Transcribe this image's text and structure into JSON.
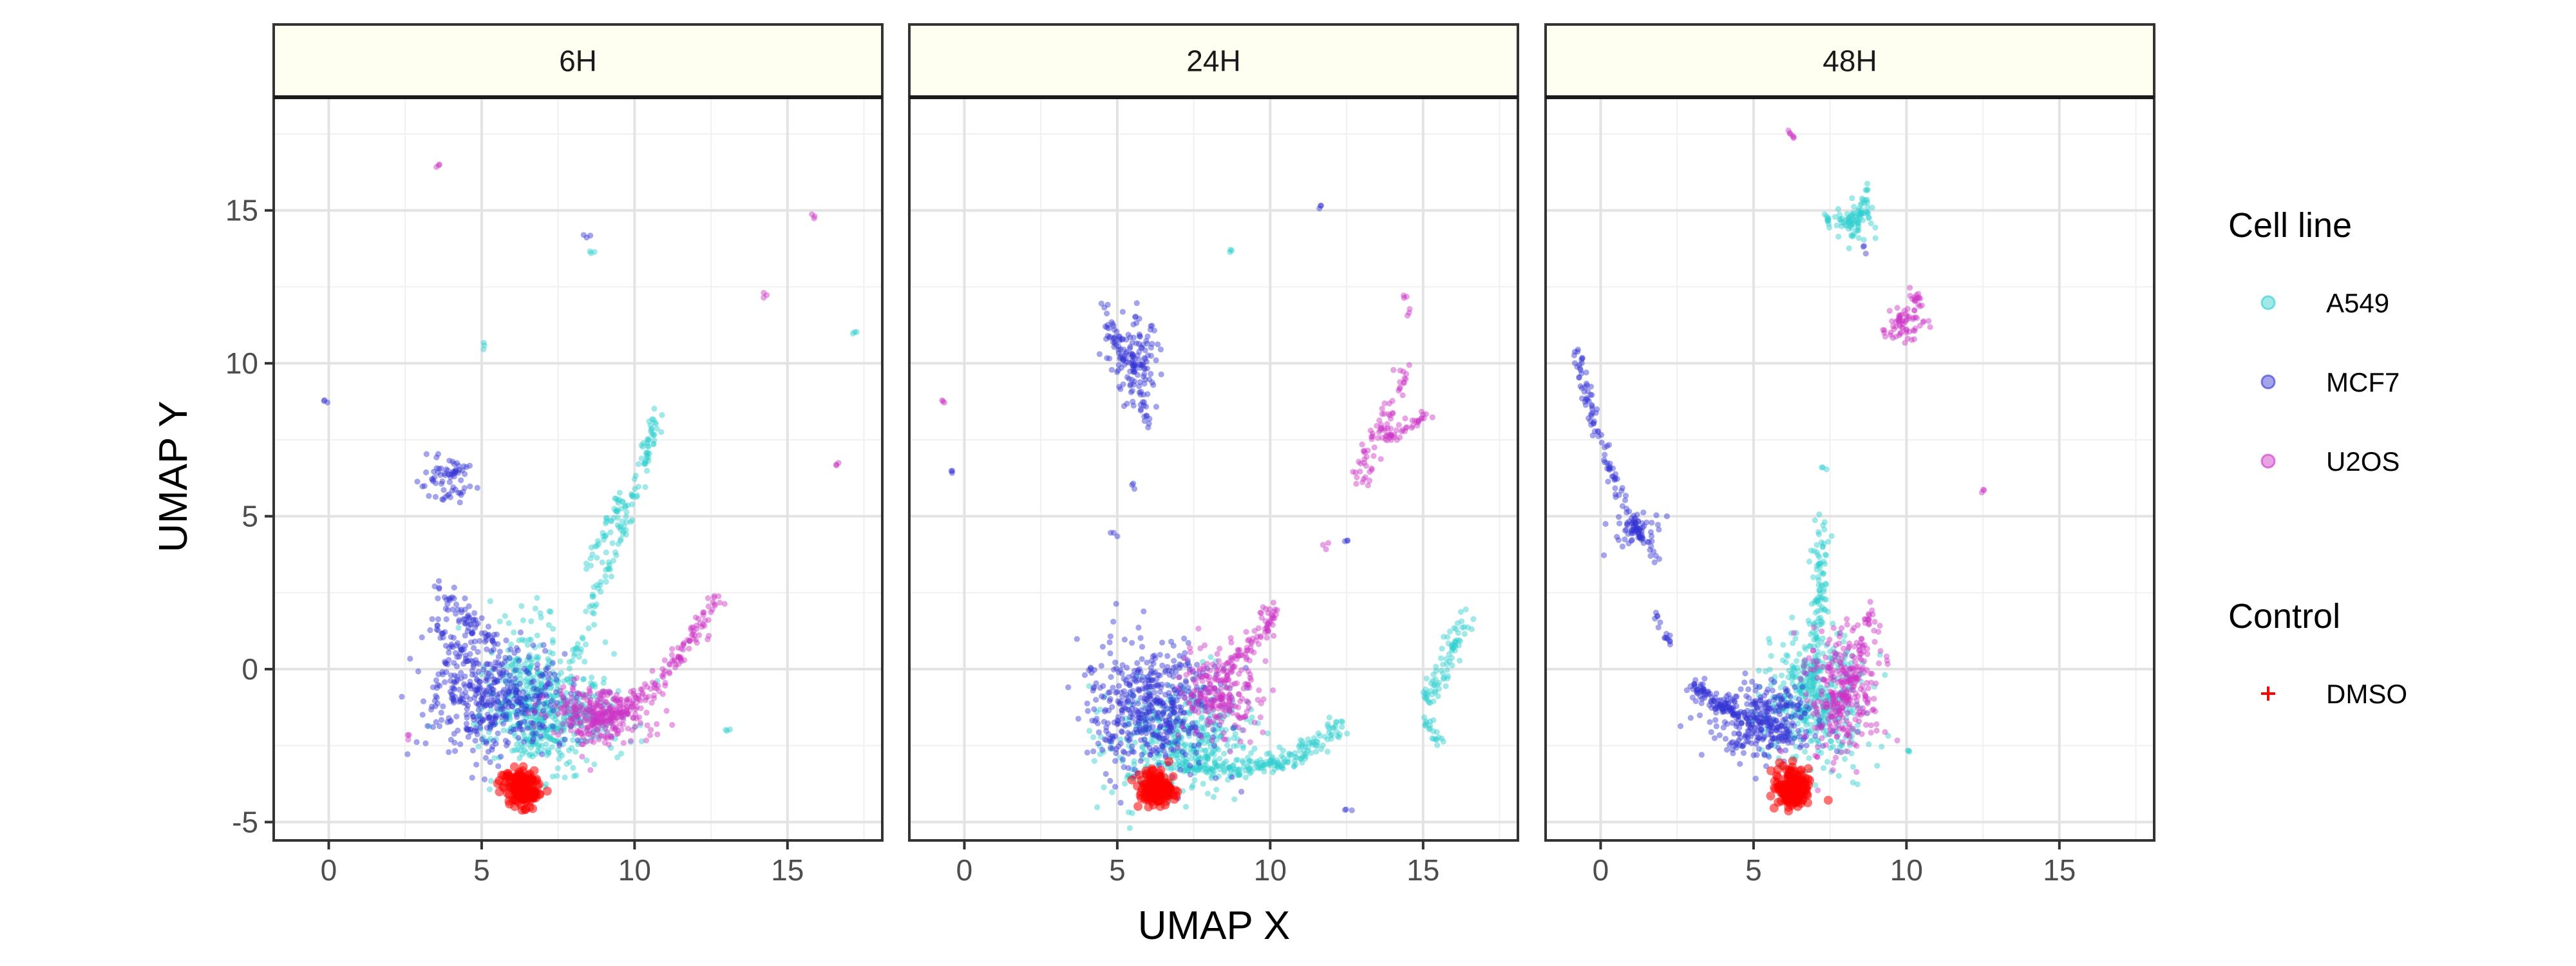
{
  "chart_data": {
    "type": "scatter",
    "xlabel": "UMAP X",
    "ylabel": "UMAP Y",
    "xlim": [
      -1.8,
      18.1
    ],
    "ylim": [
      -5.6,
      18.7
    ],
    "xticks": [
      0,
      5,
      10,
      15
    ],
    "yticks": [
      -5,
      0,
      5,
      10,
      15
    ],
    "x_tick_labels": [
      "0",
      "5",
      "10",
      "15"
    ],
    "y_tick_labels": [
      "-5",
      "0",
      "5",
      "10",
      "15"
    ],
    "grid": true,
    "legend_position": "right",
    "facet_strip_color": "#fefff0",
    "facets": [
      {
        "label": "6H",
        "series": [
          {
            "name": "A549",
            "clusters": [
              {
                "center": [
                  7.2,
                  -1.5
                ],
                "spread": [
                  1.0,
                  0.9
                ],
                "n": 500
              },
              {
                "center": [
                  6.5,
                  0.2
                ],
                "spread": [
                  0.5,
                  1.0
                ],
                "n": 90
              },
              {
                "line": [
                  [
                    8.0,
                    0.2
                  ],
                  [
                    9.2,
                    3.5
                  ],
                  [
                    10.2,
                    6.5
                  ],
                  [
                    10.8,
                    8.4
                  ]
                ],
                "n": 120,
                "jitter": 0.12
              },
              {
                "line": [
                  [
                    8.5,
                    3.2
                  ],
                  [
                    9.6,
                    5.8
                  ]
                ],
                "n": 40,
                "jitter": 0.12
              },
              {
                "points": [
                  [
                    5.1,
                    10.6
                  ],
                  [
                    8.7,
                    13.7
                  ],
                  [
                    17.2,
                    11.0
                  ],
                  [
                    13.0,
                    -2.0
                  ]
                ]
              }
            ]
          },
          {
            "name": "MCF7",
            "clusters": [
              {
                "center": [
                  5.5,
                  -1.0
                ],
                "spread": [
                  1.1,
                  0.9
                ],
                "n": 420
              },
              {
                "line": [
                  [
                    3.7,
                    2.6
                  ],
                  [
                    4.6,
                    1.5
                  ],
                  [
                    5.6,
                    0.6
                  ]
                ],
                "n": 80,
                "jitter": 0.2
              },
              {
                "line": [
                  [
                    3.3,
                    1.5
                  ],
                  [
                    4.7,
                    0.2
                  ]
                ],
                "n": 40,
                "jitter": 0.12
              },
              {
                "center": [
                  3.9,
                  6.3
                ],
                "spread": [
                  0.4,
                  0.35
                ],
                "n": 70
              },
              {
                "points": [
                  [
                    3.5,
                    -0.9
                  ],
                  [
                    -0.1,
                    8.8
                  ],
                  [
                    8.5,
                    14.2
                  ]
                ]
              }
            ]
          },
          {
            "name": "U2OS",
            "clusters": [
              {
                "center": [
                  8.8,
                  -1.5
                ],
                "spread": [
                  0.9,
                  0.5
                ],
                "n": 260
              },
              {
                "line": [
                  [
                    8.6,
                    -1.8
                  ],
                  [
                    10.0,
                    -1.2
                  ],
                  [
                    11.5,
                    0.5
                  ],
                  [
                    12.8,
                    2.6
                  ]
                ],
                "n": 160,
                "jitter": 0.16
              },
              {
                "points": [
                  [
                    3.6,
                    16.5
                  ],
                  [
                    15.8,
                    14.8
                  ],
                  [
                    16.6,
                    6.7
                  ],
                  [
                    14.3,
                    12.2
                  ],
                  [
                    2.6,
                    -2.2
                  ]
                ]
              }
            ]
          },
          {
            "name": "DMSO",
            "clusters": [
              {
                "center": [
                  6.3,
                  -3.9
                ],
                "spread": [
                  0.3,
                  0.3
                ],
                "n": 160
              }
            ]
          }
        ]
      },
      {
        "label": "24H",
        "series": [
          {
            "name": "A549",
            "clusters": [
              {
                "center": [
                  7.3,
                  -2.4
                ],
                "spread": [
                  1.2,
                  0.9
                ],
                "n": 400
              },
              {
                "line": [
                  [
                    7.0,
                    -3.2
                  ],
                  [
                    9.2,
                    -3.3
                  ],
                  [
                    11.0,
                    -2.8
                  ],
                  [
                    12.3,
                    -1.9
                  ]
                ],
                "n": 180,
                "jitter": 0.16
              },
              {
                "line": [
                  [
                    15.0,
                    -1.2
                  ],
                  [
                    15.8,
                    0.3
                  ],
                  [
                    16.5,
                    1.8
                  ]
                ],
                "n": 80,
                "jitter": 0.16
              },
              {
                "line": [
                  [
                    15.0,
                    -1.5
                  ],
                  [
                    15.6,
                    -2.5
                  ]
                ],
                "n": 20,
                "jitter": 0.1
              },
              {
                "points": [
                  [
                    8.7,
                    13.7
                  ]
                ]
              }
            ]
          },
          {
            "name": "MCF7",
            "clusters": [
              {
                "center": [
                  6.1,
                  -1.2
                ],
                "spread": [
                  1.1,
                  1.0
                ],
                "n": 500
              },
              {
                "center": [
                  5.5,
                  10.2
                ],
                "spread": [
                  0.5,
                  0.7
                ],
                "n": 130
              },
              {
                "line": [
                  [
                    4.5,
                    12.2
                  ],
                  [
                    5.5,
                    9.5
                  ],
                  [
                    6.0,
                    8.0
                  ]
                ],
                "n": 50,
                "jitter": 0.12
              },
              {
                "points": [
                  [
                    5.5,
                    6.0
                  ],
                  [
                    4.9,
                    4.4
                  ],
                  [
                    -0.4,
                    6.5
                  ],
                  [
                    11.6,
                    15.1
                  ],
                  [
                    12.5,
                    4.2
                  ],
                  [
                    12.5,
                    -4.6
                  ]
                ]
              }
            ]
          },
          {
            "name": "U2OS",
            "clusters": [
              {
                "center": [
                  8.4,
                  -0.8
                ],
                "spread": [
                  0.7,
                  0.7
                ],
                "n": 220
              },
              {
                "line": [
                  [
                    8.5,
                    0.0
                  ],
                  [
                    9.5,
                    0.9
                  ],
                  [
                    10.2,
                    2.0
                  ]
                ],
                "n": 70,
                "jitter": 0.14
              },
              {
                "line": [
                  [
                    12.9,
                    6.0
                  ],
                  [
                    13.5,
                    7.8
                  ],
                  [
                    14.4,
                    9.7
                  ]
                ],
                "n": 70,
                "jitter": 0.16
              },
              {
                "line": [
                  [
                    13.8,
                    7.5
                  ],
                  [
                    15.2,
                    8.4
                  ]
                ],
                "n": 40,
                "jitter": 0.1
              },
              {
                "points": [
                  [
                    14.4,
                    12.2
                  ],
                  [
                    14.5,
                    11.7
                  ],
                  [
                    -0.7,
                    8.8
                  ],
                  [
                    11.8,
                    4.0
                  ]
                ]
              }
            ]
          },
          {
            "name": "DMSO",
            "clusters": [
              {
                "center": [
                  6.3,
                  -3.9
                ],
                "spread": [
                  0.3,
                  0.3
                ],
                "n": 160
              }
            ]
          }
        ]
      },
      {
        "label": "48H",
        "series": [
          {
            "name": "A549",
            "clusters": [
              {
                "center": [
                  7.0,
                  -1.0
                ],
                "spread": [
                  0.8,
                  1.1
                ],
                "n": 400
              },
              {
                "line": [
                  [
                    6.9,
                    -1.5
                  ],
                  [
                    7.1,
                    1.0
                  ],
                  [
                    7.2,
                    3.0
                  ],
                  [
                    7.3,
                    4.8
                  ]
                ],
                "n": 120,
                "jitter": 0.16
              },
              {
                "center": [
                  8.3,
                  14.6
                ],
                "spread": [
                  0.35,
                  0.35
                ],
                "n": 60
              },
              {
                "line": [
                  [
                    7.3,
                    14.8
                  ],
                  [
                    8.5,
                    14.5
                  ],
                  [
                    8.7,
                    15.8
                  ]
                ],
                "n": 40,
                "jitter": 0.12
              },
              {
                "points": [
                  [
                    7.3,
                    6.6
                  ],
                  [
                    10.1,
                    -2.6
                  ]
                ]
              }
            ]
          },
          {
            "name": "MCF7",
            "clusters": [
              {
                "center": [
                  5.3,
                  -1.6
                ],
                "spread": [
                  0.9,
                  0.6
                ],
                "n": 280
              },
              {
                "line": [
                  [
                    3.0,
                    -0.5
                  ],
                  [
                    4.5,
                    -1.5
                  ],
                  [
                    6.2,
                    -2.3
                  ]
                ],
                "n": 140,
                "jitter": 0.16
              },
              {
                "line": [
                  [
                    -0.8,
                    10.4
                  ],
                  [
                    -0.2,
                    8.0
                  ],
                  [
                    0.8,
                    5.2
                  ],
                  [
                    1.8,
                    3.6
                  ]
                ],
                "n": 130,
                "jitter": 0.1
              },
              {
                "center": [
                  1.2,
                  4.5
                ],
                "spread": [
                  0.35,
                  0.35
                ],
                "n": 50
              },
              {
                "line": [
                  [
                    1.8,
                    1.8
                  ],
                  [
                    2.3,
                    0.8
                  ]
                ],
                "n": 15,
                "jitter": 0.06
              },
              {
                "points": [
                  [
                    8.6,
                    13.7
                  ]
                ]
              }
            ]
          },
          {
            "name": "U2OS",
            "clusters": [
              {
                "center": [
                  7.8,
                  -0.8
                ],
                "spread": [
                  0.6,
                  1.0
                ],
                "n": 260
              },
              {
                "line": [
                  [
                    7.6,
                    -2.0
                  ],
                  [
                    8.3,
                    0.0
                  ],
                  [
                    8.9,
                    2.0
                  ]
                ],
                "n": 80,
                "jitter": 0.16
              },
              {
                "center": [
                  10.0,
                  11.3
                ],
                "spread": [
                  0.3,
                  0.3
                ],
                "n": 50
              },
              {
                "line": [
                  [
                    9.2,
                    10.9
                  ],
                  [
                    10.3,
                    11.8
                  ],
                  [
                    10.3,
                    12.4
                  ]
                ],
                "n": 30,
                "jitter": 0.1
              },
              {
                "points": [
                  [
                    6.3,
                    17.4
                  ],
                  [
                    6.2,
                    17.6
                  ],
                  [
                    12.5,
                    5.8
                  ],
                  [
                    9.4,
                    0.3
                  ]
                ]
              }
            ]
          },
          {
            "name": "DMSO",
            "clusters": [
              {
                "center": [
                  6.3,
                  -3.9
                ],
                "spread": [
                  0.3,
                  0.3
                ],
                "n": 160
              }
            ]
          }
        ]
      }
    ],
    "legend": {
      "cell_line_title": "Cell line",
      "control_title": "Control",
      "cell_lines": [
        {
          "name": "A549",
          "color": "#2ecfcf"
        },
        {
          "name": "MCF7",
          "color": "#3535d4"
        },
        {
          "name": "U2OS",
          "color": "#cc33c6"
        }
      ],
      "controls": [
        {
          "name": "DMSO",
          "color": "#ff0000"
        }
      ]
    },
    "colors": {
      "A549": "#2ecfcf",
      "MCF7": "#3535d4",
      "U2OS": "#cc33c6",
      "DMSO": "#ff0000"
    }
  }
}
